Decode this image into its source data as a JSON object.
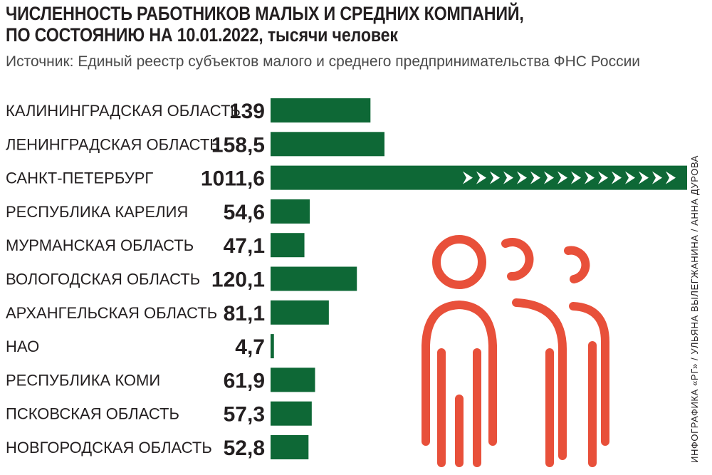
{
  "header": {
    "title_line1": "ЧИСЛЕННОСТЬ РАБОТНИКОВ МАЛЫХ И СРЕДНИХ КОМПАНИЙ,",
    "title_line2": "ПО СОСТОЯНИЮ НА 10.01.2022, тысячи человек",
    "source": "Источник: Единый реестр субъектов малого и среднего предпринимательства ФНС России",
    "credit": "ИНФОГРАФИКА «РГ» / УЛЬЯНА ВЫЛЕГЖАНИНА / АННА ДУРОВА"
  },
  "colors": {
    "bar": "#0e6836",
    "text": "#231f20",
    "icon": "#e8503a"
  },
  "icon": "people-group-icon",
  "chart_data": {
    "type": "bar",
    "orientation": "horizontal",
    "title": "ЧИСЛЕННОСТЬ РАБОТНИКОВ МАЛЫХ И СРЕДНИХ КОМПАНИЙ, ПО СОСТОЯНИЮ НА 10.01.2022, тысячи человек",
    "categories": [
      "КАЛИНИНГРАДСКАЯ ОБЛАСТЬ",
      "ЛЕНИНГРАДСКАЯ ОБЛАСТЬ",
      "САНКТ-ПЕТЕРБУРГ",
      "РЕСПУБЛИКА КАРЕЛИЯ",
      "МУРМАНСКАЯ ОБЛАСТЬ",
      "ВОЛОГОДСКАЯ ОБЛАСТЬ",
      "АРХАНГЕЛЬСКАЯ ОБЛАСТЬ",
      "НАО",
      "РЕСПУБЛИКА КОМИ",
      "ПСКОВСКАЯ ОБЛАСТЬ",
      "НОВГОРОДСКАЯ ОБЛАСТЬ"
    ],
    "values": [
      139,
      158.5,
      1011.6,
      54.6,
      47.1,
      120.1,
      81.1,
      4.7,
      61.9,
      57.3,
      52.8
    ],
    "value_labels": [
      "139",
      "158,5",
      "1011,6",
      "54,6",
      "47,1",
      "120,1",
      "81,1",
      "4,7",
      "61,9",
      "57,3",
      "52,8"
    ],
    "truncated": [
      false,
      false,
      true,
      false,
      false,
      false,
      false,
      false,
      false,
      false,
      false
    ],
    "grid": false,
    "legend": "none"
  }
}
